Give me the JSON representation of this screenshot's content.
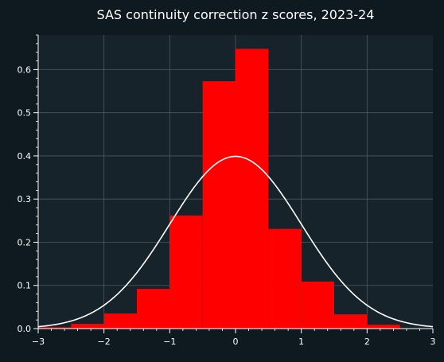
{
  "chart_data": {
    "type": "bar",
    "title": "SAS continuity correction z scores, 2023-24",
    "xlabel": "",
    "ylabel": "",
    "xlim": [
      -3,
      3
    ],
    "ylim": [
      0,
      0.68
    ],
    "grid": true,
    "legend": "none",
    "x_ticks": [
      -3,
      -2,
      -1,
      0,
      1,
      2,
      3
    ],
    "x_tick_labels": [
      "−3",
      "−2",
      "−1",
      "0",
      "1",
      "2",
      "3"
    ],
    "y_ticks": [
      0.0,
      0.1,
      0.2,
      0.3,
      0.4,
      0.5,
      0.6
    ],
    "y_tick_labels": [
      "0.0",
      "0.1",
      "0.2",
      "0.3",
      "0.4",
      "0.5",
      "0.6"
    ],
    "histogram": {
      "bin_edges": [
        -3.0,
        -2.5,
        -2.0,
        -1.5,
        -1.0,
        -0.5,
        0.0,
        0.5,
        1.0,
        1.5,
        2.0,
        2.5
      ],
      "values": [
        0.003,
        0.011,
        0.035,
        0.092,
        0.262,
        0.573,
        0.648,
        0.231,
        0.109,
        0.033,
        0.009
      ],
      "color": "#ff0000"
    },
    "curve": {
      "type": "line",
      "function": "standard normal pdf",
      "x_range": [
        -3,
        3
      ],
      "color": "#ffffff"
    },
    "colors": {
      "background": "#0e1a20",
      "plot_background": "#16232a",
      "axis": "#ffffff",
      "grid": "#5f6a70"
    }
  }
}
